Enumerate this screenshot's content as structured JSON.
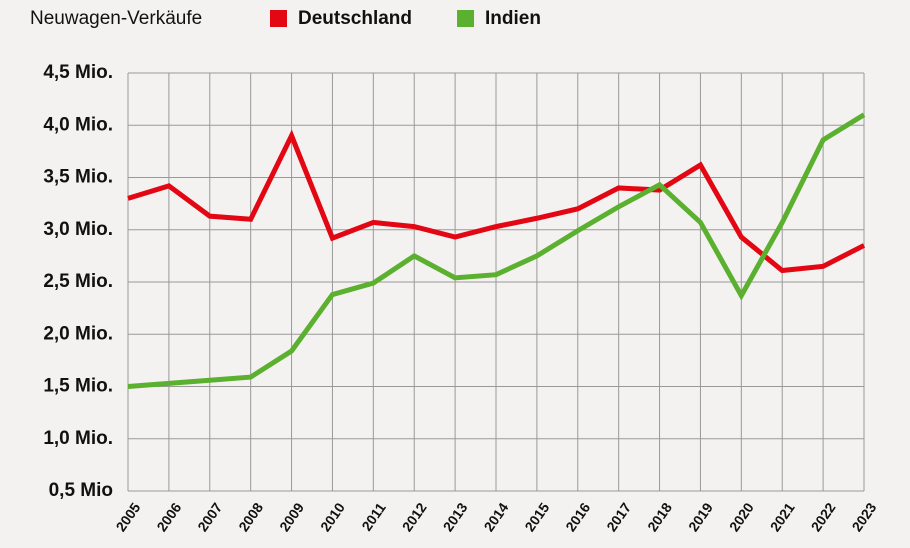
{
  "chart_data": {
    "type": "line",
    "title": "Neuwagen-Verkäufe",
    "categories": [
      "2005",
      "2006",
      "2007",
      "2008",
      "2009",
      "2010",
      "2011",
      "2012",
      "2013",
      "2014",
      "2015",
      "2016",
      "2017",
      "2018",
      "2019",
      "2020",
      "2021",
      "2022",
      "2023"
    ],
    "series": [
      {
        "name": "Deutschland",
        "color": "#e30613",
        "values": [
          3.3,
          3.42,
          3.13,
          3.1,
          3.9,
          2.92,
          3.07,
          3.03,
          2.93,
          3.03,
          3.11,
          3.2,
          3.4,
          3.38,
          3.62,
          2.93,
          2.61,
          2.65,
          2.85
        ]
      },
      {
        "name": "Indien",
        "color": "#5bb030",
        "values": [
          1.5,
          1.53,
          1.56,
          1.59,
          1.84,
          2.38,
          2.49,
          2.75,
          2.54,
          2.57,
          2.75,
          2.99,
          3.22,
          3.43,
          3.07,
          2.37,
          3.07,
          3.86,
          4.1
        ]
      }
    ],
    "ylim": [
      0.5,
      4.5
    ],
    "yticks": [
      {
        "value": 0.5,
        "label": "0,5 Mio"
      },
      {
        "value": 1.0,
        "label": "1,0 Mio."
      },
      {
        "value": 1.5,
        "label": "1,5 Mio."
      },
      {
        "value": 2.0,
        "label": "2,0 Mio."
      },
      {
        "value": 2.5,
        "label": "2,5 Mio."
      },
      {
        "value": 3.0,
        "label": "3,0 Mio."
      },
      {
        "value": 3.5,
        "label": "3,5 Mio."
      },
      {
        "value": 4.0,
        "label": "4,0 Mio."
      },
      {
        "value": 4.5,
        "label": "4,5 Mio."
      }
    ],
    "grid": true
  }
}
